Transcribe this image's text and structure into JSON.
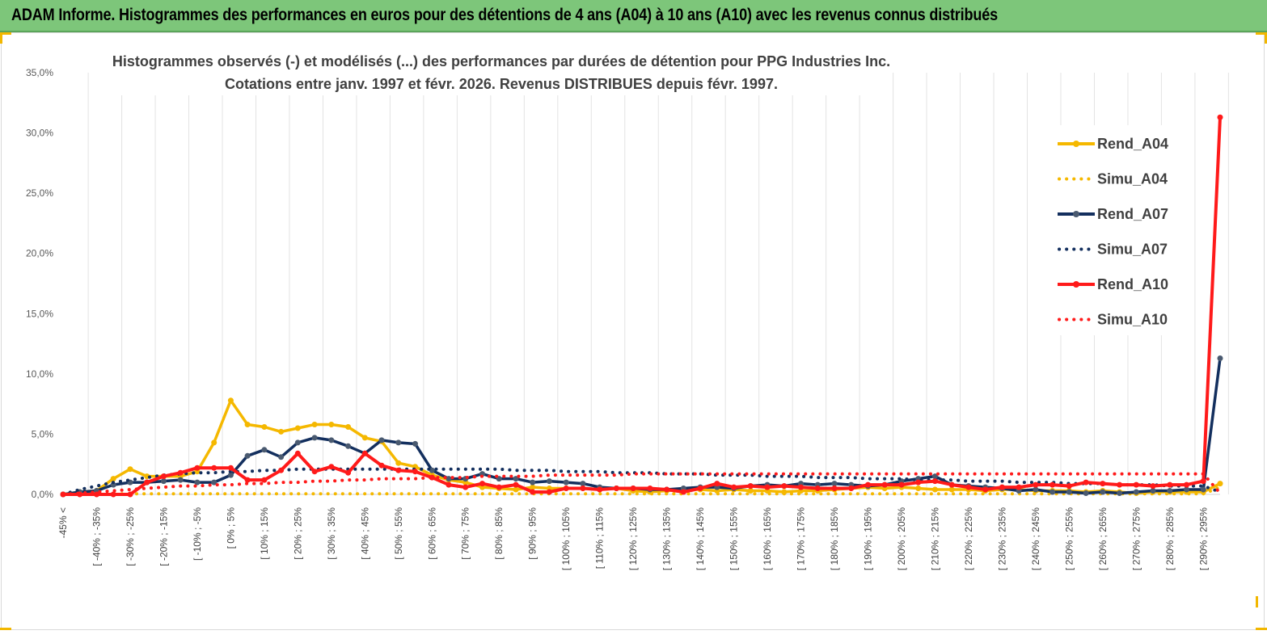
{
  "page": {
    "banner_title": "ADAM Informe. Histogrammes des performances en euros pour des détentions de 4 ans (A04) à 10 ans (A10) avec les revenus connus distribués",
    "banner_color": "#7dc67a"
  },
  "chart_data": {
    "type": "line",
    "title_line1": "Histogrammes observés (-) et modélisés (...)  des performances par durées de détention pour PPG Industries Inc.",
    "title_line2": "Cotations entre janv. 1997 et févr. 2026.  Revenus DISTRIBUES depuis févr. 1997.",
    "ylim": [
      0,
      35
    ],
    "yticks": [
      "0,0%",
      "5,0%",
      "10,0%",
      "15,0%",
      "20,0%",
      "25,0%",
      "30,0%",
      "35,0%"
    ],
    "x_labels": [
      "-45% <",
      "[ -40% ; -35%",
      "[ -30% ; -25%",
      "[ -20% ; -15%",
      "[ -10% ; -5%",
      "[ 0% ; 5%",
      "[ 10% ; 15%",
      "[ 20% ; 25%",
      "[ 30% ; 35%",
      "[ 40% ; 45%",
      "[ 50% ; 55%",
      "[ 60% ; 65%",
      "[ 70% ; 75%",
      "[ 80% ; 85%",
      "[ 90% ; 95%",
      "[ 100% ; 105%",
      "[ 110% ; 115%",
      "[ 120% ; 125%",
      "[ 130% ; 135%",
      "[ 140% ; 145%",
      "[ 150% ; 155%",
      "[ 160% ; 165%",
      "[ 170% ; 175%",
      "[ 180% ; 185%",
      "[ 190% ; 195%",
      "[ 200% ; 205%",
      "[ 210% ; 215%",
      "[ 220% ; 225%",
      "[ 230% ; 235%",
      "[ 240% ; 245%",
      "[ 250% ; 255%",
      "[ 260% ; 265%",
      "[ 270% ; 275%",
      "[ 280% ; 285%",
      "[ 290% ; 295%"
    ],
    "num_points": 70,
    "series": [
      {
        "name": "Rend_A04",
        "style": "solid",
        "color": "#f5b800",
        "values": [
          0.0,
          0.2,
          0.3,
          1.3,
          2.1,
          1.5,
          1.5,
          1.5,
          1.9,
          4.3,
          7.8,
          5.8,
          5.6,
          5.2,
          5.5,
          5.8,
          5.8,
          5.6,
          4.7,
          4.4,
          2.6,
          2.3,
          1.6,
          1.2,
          1.0,
          0.6,
          0.5,
          0.4,
          0.6,
          0.5,
          0.5,
          0.5,
          0.4,
          0.5,
          0.3,
          0.2,
          0.3,
          0.4,
          0.4,
          0.3,
          0.4,
          0.3,
          0.3,
          0.2,
          0.3,
          0.3,
          0.4,
          0.5,
          0.6,
          0.5,
          0.6,
          0.5,
          0.4,
          0.4,
          0.4,
          0.3,
          0.4,
          0.4,
          0.3,
          0.3,
          0.3,
          0.2,
          0.3,
          0.2,
          0.1,
          0.2,
          0.2,
          0.2,
          0.2,
          0.9
        ]
      },
      {
        "name": "Simu_A04",
        "style": "dotted",
        "color": "#f5b800",
        "values": [
          0.0,
          0.05,
          0.05,
          0.05,
          0.05,
          0.05,
          0.05,
          0.05,
          0.05,
          0.05,
          0.05,
          0.05,
          0.05,
          0.05,
          0.05,
          0.05,
          0.05,
          0.05,
          0.05,
          0.05,
          0.05,
          0.05,
          0.05,
          0.05,
          0.05,
          0.05,
          0.05,
          0.05,
          0.05,
          0.05,
          0.05,
          0.05,
          0.05,
          0.05,
          0.05,
          0.05,
          0.05,
          0.05,
          0.05,
          0.05,
          0.05,
          0.05,
          0.05,
          0.05,
          0.05,
          0.05,
          0.05,
          0.05,
          0.05,
          0.05,
          0.05,
          0.05,
          0.05,
          0.05,
          0.05,
          0.05,
          0.05,
          0.05,
          0.05,
          0.05,
          0.05,
          0.05,
          0.05,
          0.05,
          0.05,
          0.05,
          0.05,
          0.05,
          0.05,
          0.6
        ]
      },
      {
        "name": "Rend_A07",
        "style": "solid",
        "color": "#132f5e",
        "values": [
          0.0,
          0.2,
          0.3,
          0.8,
          1.0,
          1.0,
          1.1,
          1.2,
          1.0,
          1.0,
          1.6,
          3.2,
          3.7,
          3.1,
          4.3,
          4.7,
          4.5,
          4.0,
          3.4,
          4.5,
          4.3,
          4.2,
          2.0,
          1.3,
          1.3,
          1.7,
          1.3,
          1.3,
          1.0,
          1.1,
          1.0,
          0.9,
          0.6,
          0.5,
          0.5,
          0.4,
          0.4,
          0.5,
          0.6,
          0.6,
          0.5,
          0.7,
          0.8,
          0.7,
          0.9,
          0.8,
          0.9,
          0.8,
          0.7,
          0.8,
          1.1,
          1.3,
          1.5,
          0.8,
          0.7,
          0.6,
          0.5,
          0.3,
          0.4,
          0.2,
          0.2,
          0.1,
          0.2,
          0.1,
          0.2,
          0.3,
          0.3,
          0.4,
          0.4,
          11.3
        ]
      },
      {
        "name": "Simu_A07",
        "style": "dotted",
        "color": "#132f5e",
        "values": [
          0.0,
          0.4,
          0.7,
          1.0,
          1.2,
          1.4,
          1.6,
          1.7,
          1.8,
          1.8,
          1.9,
          1.9,
          2.0,
          2.0,
          2.1,
          2.1,
          2.1,
          2.1,
          2.1,
          2.1,
          2.1,
          2.1,
          2.1,
          2.1,
          2.1,
          2.1,
          2.1,
          2.0,
          2.0,
          2.0,
          1.9,
          1.9,
          1.9,
          1.8,
          1.8,
          1.8,
          1.7,
          1.7,
          1.7,
          1.6,
          1.6,
          1.6,
          1.5,
          1.5,
          1.5,
          1.4,
          1.4,
          1.4,
          1.3,
          1.3,
          1.3,
          1.2,
          1.2,
          1.2,
          1.1,
          1.1,
          1.1,
          1.0,
          1.0,
          1.0,
          0.9,
          0.9,
          0.9,
          0.8,
          0.8,
          0.8,
          0.7,
          0.7,
          0.7,
          0.2
        ]
      },
      {
        "name": "Rend_A10",
        "style": "solid",
        "color": "#ff1a1a",
        "values": [
          0.0,
          0.0,
          0.0,
          0.0,
          0.0,
          1.0,
          1.5,
          1.8,
          2.2,
          2.2,
          2.2,
          1.2,
          1.2,
          2.0,
          3.4,
          1.9,
          2.3,
          1.8,
          3.4,
          2.4,
          2.0,
          1.9,
          1.4,
          0.8,
          0.6,
          0.9,
          0.6,
          0.8,
          0.2,
          0.2,
          0.5,
          0.5,
          0.4,
          0.5,
          0.5,
          0.5,
          0.4,
          0.2,
          0.5,
          0.9,
          0.6,
          0.7,
          0.6,
          0.7,
          0.6,
          0.5,
          0.5,
          0.5,
          0.8,
          0.8,
          0.8,
          1.0,
          1.1,
          0.8,
          0.6,
          0.4,
          0.6,
          0.6,
          0.8,
          0.8,
          0.7,
          1.0,
          0.9,
          0.8,
          0.8,
          0.7,
          0.8,
          0.8,
          1.1,
          31.3
        ]
      },
      {
        "name": "Simu_A10",
        "style": "dotted",
        "color": "#ff1a1a",
        "values": [
          0.0,
          0.1,
          0.2,
          0.3,
          0.4,
          0.5,
          0.6,
          0.7,
          0.7,
          0.8,
          0.8,
          0.9,
          0.9,
          1.0,
          1.0,
          1.1,
          1.1,
          1.2,
          1.2,
          1.3,
          1.3,
          1.3,
          1.4,
          1.4,
          1.4,
          1.5,
          1.5,
          1.5,
          1.5,
          1.6,
          1.6,
          1.6,
          1.6,
          1.6,
          1.7,
          1.7,
          1.7,
          1.7,
          1.7,
          1.7,
          1.7,
          1.7,
          1.7,
          1.7,
          1.7,
          1.7,
          1.7,
          1.7,
          1.7,
          1.7,
          1.7,
          1.7,
          1.7,
          1.7,
          1.7,
          1.7,
          1.7,
          1.7,
          1.7,
          1.7,
          1.7,
          1.7,
          1.7,
          1.7,
          1.7,
          1.7,
          1.7,
          1.7,
          1.7,
          0.1
        ]
      }
    ]
  }
}
